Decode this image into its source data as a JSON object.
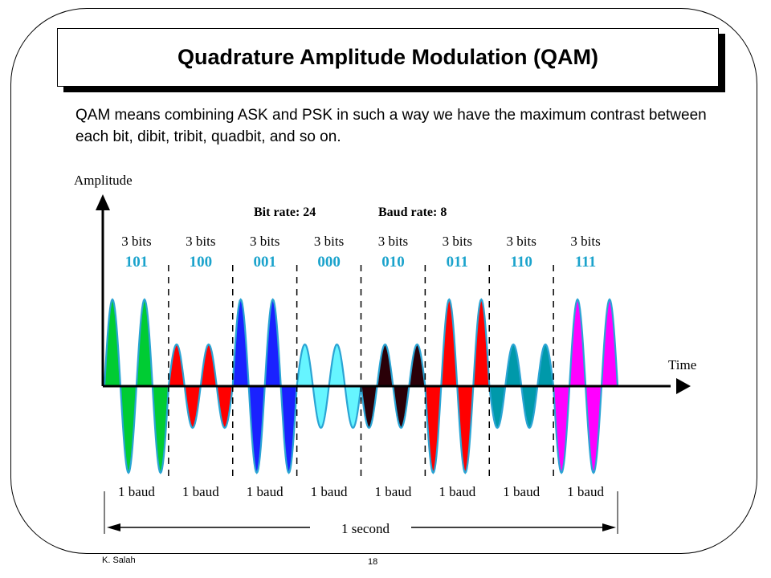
{
  "slide": {
    "title": "Quadrature Amplitude Modulation (QAM)",
    "intro": "QAM means combining ASK and PSK in such a way we have the maximum contrast between each bit, dibit, tribit, quadbit, and so on.",
    "footer_author": "K. Salah",
    "page_number": "18"
  },
  "diagram": {
    "y_axis_label": "Amplitude",
    "x_axis_label": "Time",
    "bit_rate": "Bit rate: 24",
    "baud_rate": "Baud rate: 8",
    "duration_label": "1 second",
    "cycles_per_baud": 2,
    "segments": [
      {
        "bits_label": "3 bits",
        "code": "101",
        "baud_label": "1 baud",
        "amplitude": "high",
        "phase_deg": 0,
        "color": "#00cc33"
      },
      {
        "bits_label": "3 bits",
        "code": "100",
        "baud_label": "1 baud",
        "amplitude": "low",
        "phase_deg": 0,
        "color": "#ff0000"
      },
      {
        "bits_label": "3 bits",
        "code": "001",
        "baud_label": "1 baud",
        "amplitude": "high",
        "phase_deg": 0,
        "color": "#1a22ff"
      },
      {
        "bits_label": "3 bits",
        "code": "000",
        "baud_label": "1 baud",
        "amplitude": "low",
        "phase_deg": 0,
        "color": "#66f5ff"
      },
      {
        "bits_label": "3 bits",
        "code": "010",
        "baud_label": "1 baud",
        "amplitude": "low",
        "phase_deg": 180,
        "color": "#2a0008"
      },
      {
        "bits_label": "3 bits",
        "code": "011",
        "baud_label": "1 baud",
        "amplitude": "high",
        "phase_deg": 180,
        "color": "#ff0000"
      },
      {
        "bits_label": "3 bits",
        "code": "110",
        "baud_label": "1 baud",
        "amplitude": "low",
        "phase_deg": 180,
        "color": "#0099aa"
      },
      {
        "bits_label": "3 bits",
        "code": "111",
        "baud_label": "1 baud",
        "amplitude": "high",
        "phase_deg": 180,
        "color": "#ff00ff"
      }
    ],
    "colors": {
      "code_text": "#1ba3cc",
      "outline": "#2aa4d4"
    }
  }
}
